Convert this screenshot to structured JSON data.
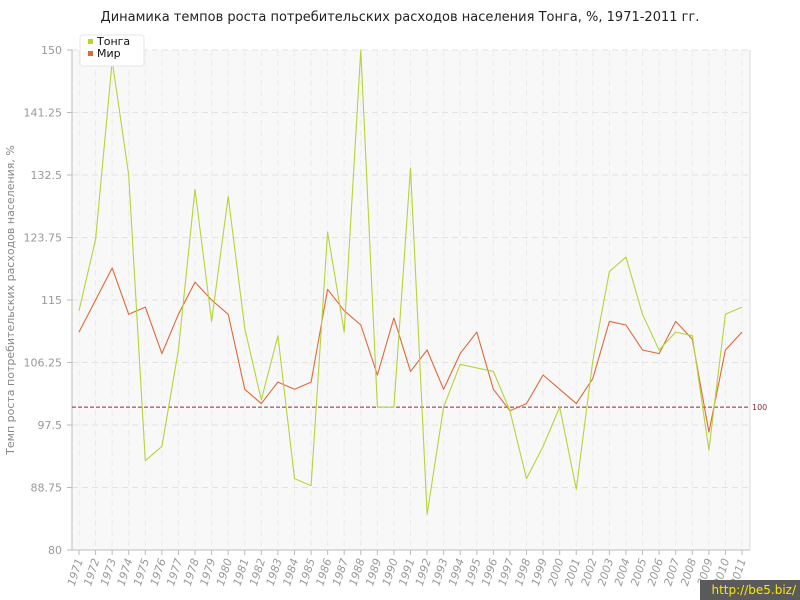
{
  "chart_data": {
    "type": "line",
    "title": "Динамика темпов роста потребительских расходов населения Тонга, %, 1971-2011 гг.",
    "ylabel": "Темп роста потребительских расходов населения, %",
    "xlabel": "",
    "ylim": [
      80,
      150
    ],
    "yticks": [
      "80",
      "88.75",
      "97.5",
      "106.25",
      "115",
      "123.75",
      "132.5",
      "141.25",
      "150"
    ],
    "categories": [
      "1971",
      "1972",
      "1973",
      "1974",
      "1975",
      "1976",
      "1977",
      "1978",
      "1979",
      "1980",
      "1981",
      "1982",
      "1983",
      "1984",
      "1985",
      "1986",
      "1987",
      "1988",
      "1989",
      "1990",
      "1991",
      "1992",
      "1993",
      "1994",
      "1995",
      "1996",
      "1997",
      "1998",
      "1999",
      "2000",
      "2001",
      "2002",
      "2003",
      "2004",
      "2005",
      "2006",
      "2007",
      "2008",
      "2009",
      "2010",
      "2011"
    ],
    "series": [
      {
        "name": "Тонга",
        "color": "#b5d43a",
        "values": [
          113.5,
          123.5,
          148.5,
          132.5,
          92.5,
          94.5,
          108,
          130.5,
          112,
          129.5,
          111,
          101,
          110,
          90,
          89,
          124.5,
          110.5,
          150,
          100,
          100,
          133.5,
          85,
          100,
          106,
          105.5,
          105,
          99.5,
          90,
          94.5,
          100,
          88.5,
          106.5,
          119,
          121,
          113,
          108,
          110.5,
          110,
          94,
          113,
          114
        ]
      },
      {
        "name": "Мир",
        "color": "#e0683a",
        "values": [
          110.5,
          115,
          119.5,
          113,
          114,
          107.5,
          113,
          117.5,
          115,
          113,
          102.5,
          100.5,
          103.5,
          102.5,
          103.5,
          116.5,
          113.5,
          111.5,
          104.5,
          112.5,
          105,
          108,
          102.5,
          107.5,
          110.5,
          102.5,
          99.5,
          100.5,
          104.5,
          102.5,
          100.5,
          104,
          112,
          111.5,
          108,
          107.5,
          112,
          109.5,
          96.5,
          108,
          110.5
        ]
      }
    ],
    "reference_line": {
      "value": 100,
      "label": "100",
      "color": "#8b2a3a"
    },
    "grid": true,
    "legend_position": "top-left"
  },
  "watermark": "http://be5.biz/"
}
